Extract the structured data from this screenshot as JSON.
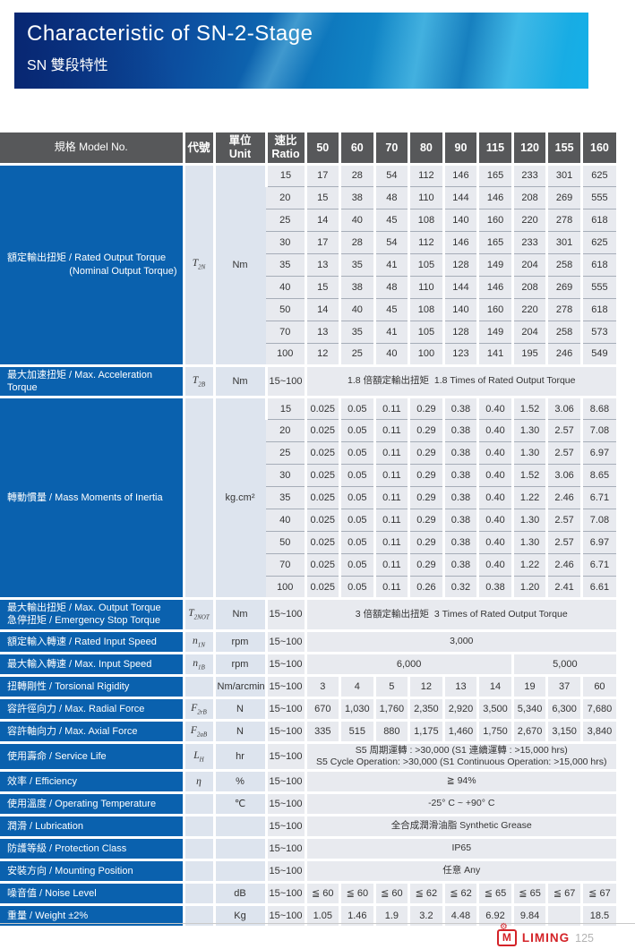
{
  "banner": {
    "title": "Characteristic of SN-2-Stage",
    "subtitle": "SN 雙段特性"
  },
  "table": {
    "header": {
      "model": "規格 Model No.",
      "symbol": "代號",
      "unit": "單位\nUnit",
      "ratio": "速比\nRatio",
      "columns": [
        "50",
        "60",
        "70",
        "80",
        "90",
        "115",
        "120",
        "155",
        "160"
      ]
    },
    "sections": [
      {
        "label": "額定輸出扭矩 / Rated Output Torque",
        "label2": "(Nominal Output Torque)",
        "label2_right": true,
        "sym": [
          "T",
          "2N"
        ],
        "unit": "Nm",
        "rows": [
          {
            "ratio": "15",
            "values": [
              "17",
              "28",
              "54",
              "112",
              "146",
              "165",
              "233",
              "301",
              "625"
            ]
          },
          {
            "ratio": "20",
            "values": [
              "15",
              "38",
              "48",
              "110",
              "144",
              "146",
              "208",
              "269",
              "555"
            ]
          },
          {
            "ratio": "25",
            "values": [
              "14",
              "40",
              "45",
              "108",
              "140",
              "160",
              "220",
              "278",
              "618"
            ]
          },
          {
            "ratio": "30",
            "values": [
              "17",
              "28",
              "54",
              "112",
              "146",
              "165",
              "233",
              "301",
              "625"
            ]
          },
          {
            "ratio": "35",
            "values": [
              "13",
              "35",
              "41",
              "105",
              "128",
              "149",
              "204",
              "258",
              "618"
            ]
          },
          {
            "ratio": "40",
            "values": [
              "15",
              "38",
              "48",
              "110",
              "144",
              "146",
              "208",
              "269",
              "555"
            ]
          },
          {
            "ratio": "50",
            "values": [
              "14",
              "40",
              "45",
              "108",
              "140",
              "160",
              "220",
              "278",
              "618"
            ]
          },
          {
            "ratio": "70",
            "values": [
              "13",
              "35",
              "41",
              "105",
              "128",
              "149",
              "204",
              "258",
              "573"
            ]
          },
          {
            "ratio": "100",
            "values": [
              "12",
              "25",
              "40",
              "100",
              "123",
              "141",
              "195",
              "246",
              "549"
            ]
          }
        ]
      },
      {
        "label": "最大加速扭矩 / Max. Acceleration Torque",
        "sym": [
          "T",
          "2B"
        ],
        "unit": "Nm",
        "ratio": "15~100",
        "span": "1.8 倍額定輸出扭矩  1.8 Times of Rated Output Torque"
      },
      {
        "label": "轉動慣量 / Mass Moments of Inertia",
        "unit": "kg.cm²",
        "rows": [
          {
            "ratio": "15",
            "values": [
              "0.025",
              "0.05",
              "0.11",
              "0.29",
              "0.38",
              "0.40",
              "1.52",
              "3.06",
              "8.68"
            ]
          },
          {
            "ratio": "20",
            "values": [
              "0.025",
              "0.05",
              "0.11",
              "0.29",
              "0.38",
              "0.40",
              "1.30",
              "2.57",
              "7.08"
            ]
          },
          {
            "ratio": "25",
            "values": [
              "0.025",
              "0.05",
              "0.11",
              "0.29",
              "0.38",
              "0.40",
              "1.30",
              "2.57",
              "6.97"
            ]
          },
          {
            "ratio": "30",
            "values": [
              "0.025",
              "0.05",
              "0.11",
              "0.29",
              "0.38",
              "0.40",
              "1.52",
              "3.06",
              "8.65"
            ]
          },
          {
            "ratio": "35",
            "values": [
              "0.025",
              "0.05",
              "0.11",
              "0.29",
              "0.38",
              "0.40",
              "1.22",
              "2.46",
              "6.71"
            ]
          },
          {
            "ratio": "40",
            "values": [
              "0.025",
              "0.05",
              "0.11",
              "0.29",
              "0.38",
              "0.40",
              "1.30",
              "2.57",
              "7.08"
            ]
          },
          {
            "ratio": "50",
            "values": [
              "0.025",
              "0.05",
              "0.11",
              "0.29",
              "0.38",
              "0.40",
              "1.30",
              "2.57",
              "6.97"
            ]
          },
          {
            "ratio": "70",
            "values": [
              "0.025",
              "0.05",
              "0.11",
              "0.29",
              "0.38",
              "0.40",
              "1.22",
              "2.46",
              "6.71"
            ]
          },
          {
            "ratio": "100",
            "values": [
              "0.025",
              "0.05",
              "0.11",
              "0.26",
              "0.32",
              "0.38",
              "1.20",
              "2.41",
              "6.61"
            ]
          }
        ]
      },
      {
        "label": "最大輸出扭矩 / Max. Output Torque",
        "label2": "急停扭矩 / Emergency Stop Torque",
        "label2_right": false,
        "sym": [
          "T",
          "2NOT"
        ],
        "unit": "Nm",
        "ratio": "15~100",
        "span": "3 倍額定輸出扭矩  3 Times of Rated Output Torque"
      },
      {
        "label": "額定輸入轉速 / Rated Input Speed",
        "sym": [
          "n",
          "1N"
        ],
        "unit": "rpm",
        "ratio": "15~100",
        "span": "3,000"
      },
      {
        "label": "最大輸入轉速 / Max. Input Speed",
        "sym": [
          "n",
          "1B"
        ],
        "unit": "rpm",
        "ratio": "15~100",
        "spans": [
          {
            "text": "6,000",
            "cols": 6
          },
          {
            "text": "5,000",
            "cols": 3
          }
        ]
      },
      {
        "label": "扭轉剛性 / Torsional Rigidity",
        "unit": "Nm/arcmin",
        "ratio": "15~100",
        "values": [
          "3",
          "4",
          "5",
          "12",
          "13",
          "14",
          "19",
          "37",
          "60"
        ]
      },
      {
        "label": "容許徑向力 / Max. Radial Force",
        "sym": [
          "F",
          "2rB"
        ],
        "unit": "N",
        "ratio": "15~100",
        "values": [
          "670",
          "1,030",
          "1,760",
          "2,350",
          "2,920",
          "3,500",
          "5,340",
          "6,300",
          "7,680"
        ]
      },
      {
        "label": "容許軸向力 / Max. Axial Force",
        "sym": [
          "F",
          "2aB"
        ],
        "unit": "N",
        "ratio": "15~100",
        "values": [
          "335",
          "515",
          "880",
          "1,175",
          "1,460",
          "1,750",
          "2,670",
          "3,150",
          "3,840"
        ]
      },
      {
        "label": "使用壽命 / Service Life",
        "sym": [
          "L",
          "H"
        ],
        "unit": "hr",
        "ratio": "15~100",
        "span": "S5 周期運轉 : >30,000 (S1 連續運轉 : >15,000 hrs)\nS5 Cycle Operation: >30,000 (S1 Continuous Operation: >15,000 hrs)"
      },
      {
        "label": "效率 / Efficiency",
        "sym": [
          "η",
          ""
        ],
        "unit": "%",
        "ratio": "15~100",
        "span": "≧ 94%"
      },
      {
        "label": "使用溫度 / Operating Temperature",
        "unit": "℃",
        "ratio": "15~100",
        "span": "-25° C ~ +90° C"
      },
      {
        "label": "潤滑 / Lubrication",
        "ratio": "15~100",
        "span": "全合成潤滑油脂 Synthetic Grease"
      },
      {
        "label": "防護等級 / Protection Class",
        "ratio": "15~100",
        "span": "IP65"
      },
      {
        "label": "安裝方向 / Mounting Position",
        "ratio": "15~100",
        "span": "任意 Any"
      },
      {
        "label": "噪音值 / Noise Level",
        "unit": "dB",
        "ratio": "15~100",
        "values": [
          "≦ 60",
          "≦ 60",
          "≦ 60",
          "≦ 62",
          "≦ 62",
          "≦ 65",
          "≦ 65",
          "≦ 67",
          "≦ 67"
        ]
      },
      {
        "label": "重量 / Weight ±2%",
        "unit": "Kg",
        "ratio": "15~100",
        "values": [
          "1.05",
          "1.46",
          "1.9",
          "3.2",
          "4.48",
          "6.92",
          "9.84",
          "",
          "18.5"
        ]
      }
    ]
  },
  "footer": {
    "logo_letter": "M",
    "gear_icon": "⚙",
    "brand": "LIMING",
    "page": "125"
  },
  "colors": {
    "label_blue": "#0a61ae",
    "header_gray": "#57585a",
    "cell_gray": "#e8eaef",
    "symbol_cell": "#dde4ee",
    "brand_red": "#d42328"
  }
}
